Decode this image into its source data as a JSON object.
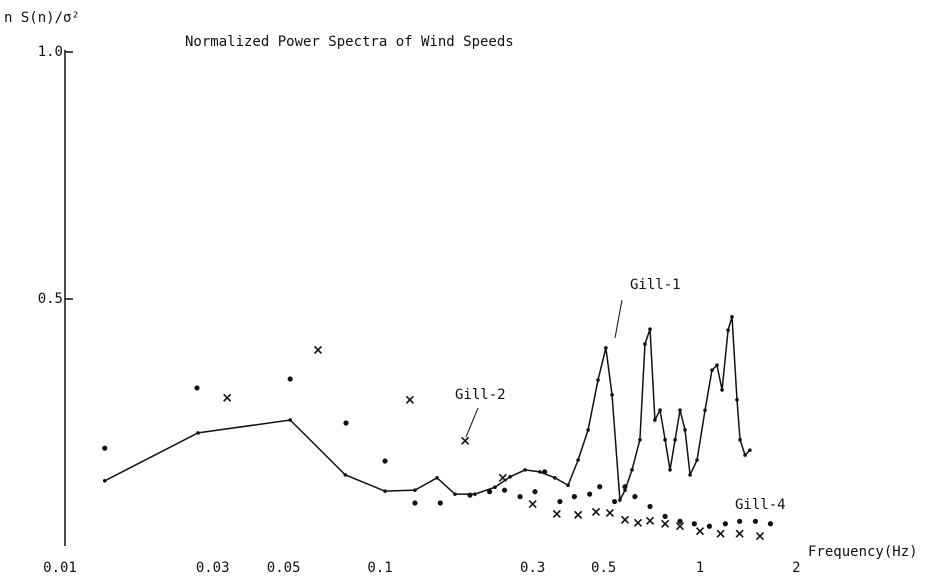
{
  "chart_data": {
    "type": "line",
    "title": "Normalized Power Spectra of Wind Speeds",
    "ylabel": "n S(n)/σ²",
    "xlabel": "Frequency(Hz)",
    "xscale": "log",
    "xlim": [
      0.01,
      2.4
    ],
    "xticks": [
      0.01,
      0.03,
      0.05,
      0.1,
      0.3,
      0.5,
      1,
      2
    ],
    "ylim": [
      0,
      1.0
    ],
    "yticks": [
      {
        "value": 1.0,
        "label": "1.0"
      },
      0.5
    ],
    "series": [
      {
        "name": "Gill-1",
        "style": "line",
        "color": "#111111",
        "x": [
          0.0138,
          0.027,
          0.0524,
          0.0779,
          0.1037,
          0.1286,
          0.1507,
          0.1715,
          0.198,
          0.2287,
          0.255,
          0.284,
          0.316,
          0.352,
          0.387,
          0.416,
          0.447,
          0.48,
          0.508,
          0.531,
          0.562,
          0.583,
          0.613,
          0.649,
          0.673,
          0.698,
          0.723,
          0.75,
          0.778,
          0.806,
          0.836,
          0.866,
          0.898,
          0.931,
          0.979,
          1.037,
          1.09,
          1.13,
          1.172,
          1.224,
          1.259,
          1.305,
          1.334,
          1.383,
          1.432
        ],
        "values": [
          0.132,
          0.229,
          0.255,
          0.144,
          0.111,
          0.113,
          0.138,
          0.105,
          0.105,
          0.119,
          0.14,
          0.154,
          0.15,
          0.138,
          0.123,
          0.174,
          0.235,
          0.336,
          0.401,
          0.306,
          0.093,
          0.113,
          0.154,
          0.215,
          0.409,
          0.439,
          0.255,
          0.275,
          0.215,
          0.154,
          0.215,
          0.275,
          0.235,
          0.144,
          0.174,
          0.275,
          0.356,
          0.366,
          0.316,
          0.437,
          0.464,
          0.296,
          0.215,
          0.184,
          0.194
        ]
      },
      {
        "name": "Gill-2",
        "style": "x",
        "color": "#111111",
        "x": [
          0.0333,
          0.064,
          0.124,
          0.1845,
          0.242,
          0.3,
          0.357,
          0.416,
          0.473,
          0.523,
          0.583,
          0.64,
          0.698,
          0.778,
          0.866,
          1.0,
          1.16,
          1.33,
          1.54
        ],
        "values": [
          0.3,
          0.397,
          0.296,
          0.213,
          0.138,
          0.085,
          0.065,
          0.063,
          0.069,
          0.067,
          0.053,
          0.047,
          0.051,
          0.045,
          0.04,
          0.03,
          0.025,
          0.025,
          0.02
        ]
      },
      {
        "name": "Gill-4",
        "style": "dot",
        "color": "#111111",
        "x": [
          0.0138,
          0.0268,
          0.0524,
          0.0783,
          0.1037,
          0.1286,
          0.1543,
          0.191,
          0.22,
          0.245,
          0.274,
          0.305,
          0.327,
          0.365,
          0.405,
          0.452,
          0.486,
          0.541,
          0.583,
          0.626,
          0.698,
          0.778,
          0.866,
          0.96,
          1.07,
          1.2,
          1.33,
          1.49,
          1.66
        ],
        "values": [
          0.198,
          0.32,
          0.338,
          0.249,
          0.172,
          0.087,
          0.087,
          0.103,
          0.11,
          0.113,
          0.1,
          0.11,
          0.15,
          0.09,
          0.1,
          0.105,
          0.12,
          0.09,
          0.12,
          0.1,
          0.08,
          0.06,
          0.05,
          0.045,
          0.04,
          0.045,
          0.05,
          0.05,
          0.045
        ]
      }
    ]
  }
}
